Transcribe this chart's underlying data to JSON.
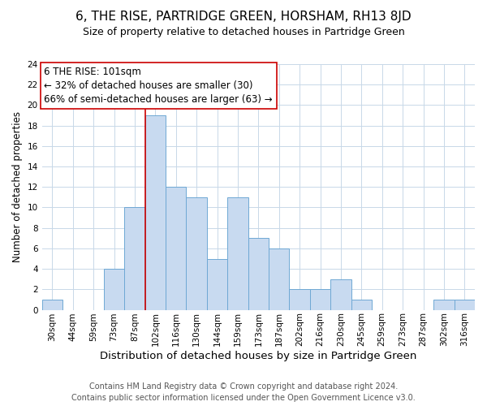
{
  "title": "6, THE RISE, PARTRIDGE GREEN, HORSHAM, RH13 8JD",
  "subtitle": "Size of property relative to detached houses in Partridge Green",
  "xlabel": "Distribution of detached houses by size in Partridge Green",
  "ylabel": "Number of detached properties",
  "footer_lines": [
    "Contains HM Land Registry data © Crown copyright and database right 2024.",
    "Contains public sector information licensed under the Open Government Licence v3.0."
  ],
  "bin_labels": [
    "30sqm",
    "44sqm",
    "59sqm",
    "73sqm",
    "87sqm",
    "102sqm",
    "116sqm",
    "130sqm",
    "144sqm",
    "159sqm",
    "173sqm",
    "187sqm",
    "202sqm",
    "216sqm",
    "230sqm",
    "245sqm",
    "259sqm",
    "273sqm",
    "287sqm",
    "302sqm",
    "316sqm"
  ],
  "bar_values": [
    1,
    0,
    0,
    4,
    10,
    19,
    12,
    11,
    5,
    11,
    7,
    6,
    2,
    2,
    3,
    1,
    0,
    0,
    0,
    1,
    1
  ],
  "bar_color": "#c8daf0",
  "bar_edge_color": "#6fa8d4",
  "vline_color": "#cc0000",
  "annotation_title": "6 THE RISE: 101sqm",
  "annotation_line1": "← 32% of detached houses are smaller (30)",
  "annotation_line2": "66% of semi-detached houses are larger (63) →",
  "annotation_box_color": "#ffffff",
  "annotation_box_edge": "#cc0000",
  "ylim": [
    0,
    24
  ],
  "yticks": [
    0,
    2,
    4,
    6,
    8,
    10,
    12,
    14,
    16,
    18,
    20,
    22,
    24
  ],
  "grid_color": "#c8d8e8",
  "background_color": "#ffffff",
  "title_fontsize": 11,
  "subtitle_fontsize": 9,
  "xlabel_fontsize": 9.5,
  "ylabel_fontsize": 8.5,
  "tick_fontsize": 7.5,
  "annotation_fontsize": 8.5,
  "footer_fontsize": 7
}
